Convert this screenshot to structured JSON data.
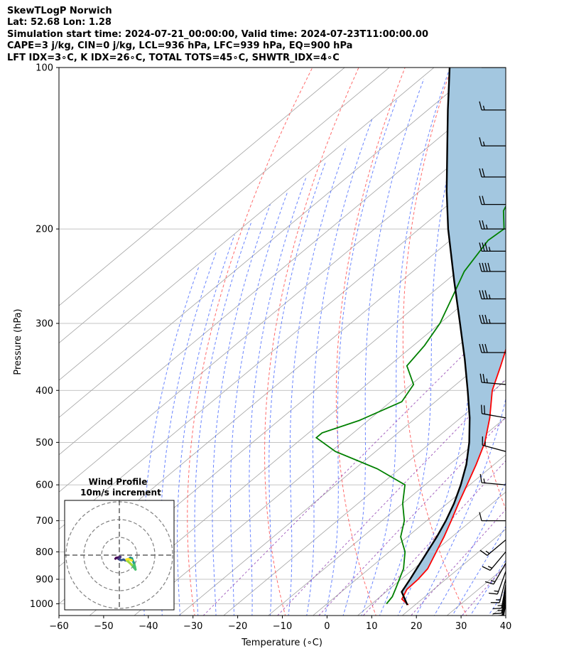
{
  "header": {
    "line1": "SkewTLogP Norwich",
    "line2": "Lat: 52.68   Lon: 1.28",
    "line3": "Simulation start time: 2024-07-21_00:00:00, Valid time: 2024-07-23T11:00:00.00",
    "line4": "CAPE=3 j/kg, CIN=0 j/kg, LCL=936 hPa, LFC=939 hPa, EQ=900 hPa",
    "line5": "LFT IDX=3∘C, K IDX=26∘C, TOTAL TOTS=45∘C, SHWTR_IDX=4∘C"
  },
  "chart_data": [
    {
      "type": "line",
      "title": "SkewTLogP Norwich",
      "xlabel": "Temperature (∘C)",
      "ylabel": "Pressure (hPa)",
      "xlim": [
        -60,
        40
      ],
      "ylim": [
        1050,
        100
      ],
      "y_scale": "log",
      "skew": true,
      "grid": true,
      "x_ticks": [
        -60,
        -50,
        -40,
        -30,
        -20,
        -10,
        0,
        10,
        20,
        30,
        40
      ],
      "x_tick_labels": [
        "−60",
        "−50",
        "−40",
        "−30",
        "−20",
        "−10",
        "0",
        "10",
        "20",
        "30",
        "40"
      ],
      "y_ticks": [
        1000,
        900,
        800,
        700,
        600,
        500,
        400,
        300,
        200,
        100
      ],
      "y_tick_labels": [
        "1000",
        "900",
        "800",
        "700",
        "600",
        "500",
        "400",
        "300",
        "200",
        "100"
      ],
      "series": [
        {
          "role": "temperature",
          "color": "#ff0000",
          "pressure": [
            1005,
            980,
            940,
            900,
            860,
            800,
            750,
            700,
            650,
            600,
            550,
            500,
            450,
            400,
            360,
            330,
            300,
            270,
            240,
            215,
            200,
            185,
            170,
            155,
            140,
            125,
            110,
            100
          ],
          "temperature": [
            18.5,
            15.5,
            14.0,
            13.8,
            13.1,
            10.5,
            8.2,
            5.5,
            2.5,
            -0.6,
            -4.0,
            -8.0,
            -13.5,
            -20.3,
            -25.0,
            -29.0,
            -34.5,
            -41.0,
            -47.8,
            -53.5,
            -55.3,
            -56.2,
            -56.0,
            -56.0,
            -56.0,
            -56.5,
            -57.5,
            -58.0
          ]
        },
        {
          "role": "dewpoint",
          "color": "#008000",
          "pressure": [
            1000,
            970,
            935,
            900,
            860,
            800,
            750,
            700,
            650,
            600,
            560,
            520,
            490,
            480,
            455,
            420,
            390,
            360,
            330,
            300,
            270,
            240,
            210,
            200,
            185,
            165,
            145,
            120,
            100
          ],
          "dewpoint": [
            13.3,
            12.7,
            11.2,
            9.6,
            7.7,
            3.5,
            -1.5,
            -5.0,
            -10.0,
            -14.5,
            -25.0,
            -39.0,
            -47.0,
            -47.0,
            -42.0,
            -37.5,
            -39.5,
            -46.0,
            -47.5,
            -50.0,
            -54.0,
            -58.5,
            -61.5,
            -61.0,
            -66.0,
            -70.0,
            -74.0,
            -80.0,
            -85.0
          ]
        },
        {
          "role": "parcel",
          "color": "#000000",
          "pressure": [
            1005,
            950,
            900,
            850,
            800,
            750,
            700,
            650,
            600,
            550,
            500,
            450,
            400,
            350,
            300,
            250,
            200,
            170,
            140,
            120,
            100
          ],
          "temperature": [
            18.3,
            13.5,
            12.0,
            10.3,
            8.5,
            6.6,
            4.3,
            1.5,
            -2.0,
            -6.2,
            -11.5,
            -18.0,
            -25.8,
            -34.8,
            -45.5,
            -58.2,
            -73.5,
            -84.0,
            -96.0,
            -105.5,
            -116.5
          ]
        }
      ],
      "cape_fill_color": "#a3c7e0"
    },
    {
      "type": "scatter",
      "title": "Wind Profile",
      "subtitle": "10m/s increment",
      "colormap": "viridis",
      "u": [
        -2.2,
        -1.8,
        -0.8,
        0.2,
        0.6,
        0.2,
        -0.5,
        0.5,
        1.3,
        2.3,
        3.5,
        4.5,
        5.4,
        6.2,
        7.1,
        7.5,
        8.1,
        8.5,
        8.8,
        9.1,
        8.2,
        7.0,
        6.0,
        4.5,
        4.0,
        5.0,
        6.5,
        7.0
      ],
      "v": [
        -2.0,
        -1.6,
        -1.4,
        -1.1,
        -1.0,
        -1.5,
        -2.1,
        -2.7,
        -2.8,
        -2.5,
        -3.0,
        -2.7,
        -2.2,
        -1.5,
        -1.8,
        -3.0,
        -4.2,
        -5.4,
        -6.6,
        -8.1,
        -7.0,
        -5.5,
        -4.5,
        -3.2,
        -2.5,
        -2.2,
        -2.7,
        -3.0
      ]
    }
  ],
  "wind_barbs": {
    "color": "#000000",
    "pressure": [
      100,
      120,
      140,
      160,
      180,
      200,
      220,
      240,
      270,
      300,
      340,
      390,
      450,
      520,
      600,
      700,
      760,
      800,
      840,
      870,
      900,
      920,
      940,
      960,
      980,
      1000
    ],
    "speed_kt": [
      10,
      15,
      15,
      20,
      20,
      25,
      35,
      40,
      35,
      35,
      30,
      25,
      20,
      15,
      15,
      10,
      15,
      15,
      15,
      15,
      15,
      15,
      15,
      15,
      15,
      15
    ],
    "direction_deg": [
      270,
      270,
      270,
      270,
      270,
      270,
      270,
      270,
      270,
      270,
      270,
      275,
      280,
      285,
      275,
      270,
      230,
      220,
      210,
      200,
      195,
      190,
      190,
      190,
      190,
      190
    ]
  }
}
